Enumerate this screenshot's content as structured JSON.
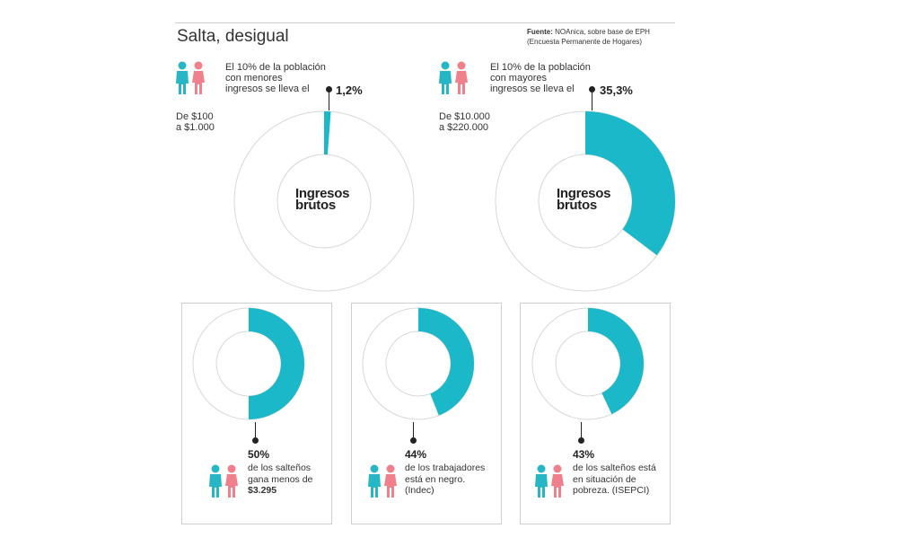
{
  "header": {
    "title": "Salta, desigual",
    "source_label": "Fuente:",
    "source_text": "NOAnica, sobre base de EPH",
    "source_text2": "(Encuesta Permanente de Hogares)"
  },
  "colors": {
    "accent": "#1ab8c8",
    "male_icon": "#27b6c6",
    "female_icon": "#f0808c",
    "ring_empty": "#ffffff",
    "ring_stroke": "#d8d8d8"
  },
  "icons": [
    "male-person-icon",
    "female-person-icon"
  ],
  "top_left": {
    "note_lines": [
      "El 10% de la población",
      "con menores",
      "ingresos se lleva el"
    ],
    "value_label": "1,2%",
    "range_lines": [
      "De $100",
      "a $1.000"
    ],
    "center_lines": [
      "Ingresos",
      "brutos"
    ]
  },
  "top_right": {
    "note_lines": [
      "El 10% de la población",
      "con mayores",
      "ingresos se lleva el"
    ],
    "value_label": "35,3%",
    "range_lines": [
      "De $10.000",
      "a $220.000"
    ],
    "center_lines": [
      "Ingresos",
      "brutos"
    ]
  },
  "panels": [
    {
      "value_label": "50%",
      "desc_lines": [
        "de los salteños",
        "gana menos de"
      ],
      "desc_bold": "$3.295"
    },
    {
      "value_label": "44%",
      "desc_lines": [
        "de los trabajadores",
        "está en negro.",
        "(Indec)"
      ],
      "desc_bold": ""
    },
    {
      "value_label": "43%",
      "desc_lines": [
        "de los salteños está",
        "en situación de",
        "pobreza. (ISEPCI)"
      ],
      "desc_bold": ""
    }
  ],
  "chart_data": [
    {
      "type": "pie",
      "categories": [
        "El 10% de la población con menores ingresos",
        "Resto"
      ],
      "values": [
        1.2,
        98.8
      ]
    },
    {
      "type": "pie",
      "categories": [
        "El 10% de la población con mayores ingresos",
        "Resto"
      ],
      "values": [
        35.3,
        64.7
      ]
    },
    {
      "type": "pie",
      "categories": [
        "de los salteños gana menos de $3.295",
        "Resto"
      ],
      "values": [
        50,
        50
      ]
    },
    {
      "type": "pie",
      "categories": [
        "de los trabajadores está en negro",
        "Resto"
      ],
      "values": [
        44,
        56
      ]
    },
    {
      "type": "pie",
      "categories": [
        "de los salteños está en situación de pobreza",
        "Resto"
      ],
      "values": [
        43,
        57
      ]
    }
  ]
}
